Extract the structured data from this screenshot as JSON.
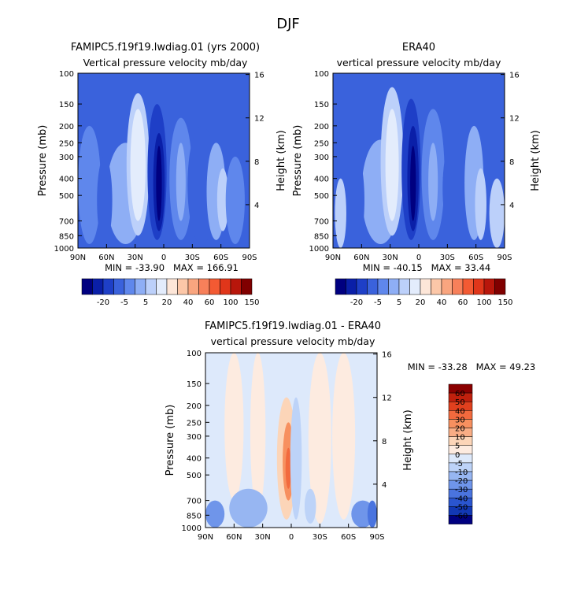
{
  "figure_title": "DJF",
  "chart_data": [
    {
      "type": "heatmap",
      "title": "FAMIPC5.f19f19.lwdiag.01 (yrs 2000)",
      "subtitle": "Vertical pressure velocity mb/day",
      "xlabel": "",
      "ylabel": "Pressure (mb)",
      "right_ylabel": "Height (km)",
      "x_ticks": [
        "90N",
        "60N",
        "30N",
        "0",
        "30S",
        "60S",
        "90S"
      ],
      "x_range": [
        90,
        -90
      ],
      "y_ticks": [
        "100",
        "150",
        "200",
        "250",
        "300",
        "400",
        "500",
        "700",
        "850",
        "1000"
      ],
      "y_range_mb": [
        1000,
        100
      ],
      "y_scale": "log",
      "right_ticks": [
        "4",
        "8",
        "12",
        "16"
      ],
      "stats": "MIN = -33.90   MAX = 166.91",
      "colorbar": {
        "labels": [
          "-20",
          "-5",
          "5",
          "20",
          "40",
          "60",
          "100",
          "150"
        ],
        "colors": [
          "#000080",
          "#0a1fa8",
          "#1e3fc7",
          "#3a62dc",
          "#5f87ec",
          "#8eaef5",
          "#bcd0fa",
          "#e3ecfc",
          "#fde6d8",
          "#fcc7a8",
          "#f9a57f",
          "#f7805a",
          "#f35a33",
          "#e0361a",
          "#b8160b",
          "#800000"
        ]
      }
    },
    {
      "type": "heatmap",
      "title": "ERA40",
      "subtitle": "vertical pressure velocity mb/day",
      "xlabel": "",
      "ylabel": "Pressure (mb)",
      "right_ylabel": "Height (km)",
      "x_ticks": [
        "90N",
        "60N",
        "30N",
        "0",
        "30S",
        "60S",
        "90S"
      ],
      "x_range": [
        90,
        -90
      ],
      "y_ticks": [
        "100",
        "150",
        "200",
        "250",
        "300",
        "400",
        "500",
        "700",
        "850",
        "1000"
      ],
      "y_range_mb": [
        1000,
        100
      ],
      "y_scale": "log",
      "right_ticks": [
        "4",
        "8",
        "12",
        "16"
      ],
      "stats": "MIN = -40.15   MAX = 33.44",
      "colorbar": {
        "labels": [
          "-20",
          "-5",
          "5",
          "20",
          "40",
          "60",
          "100",
          "150"
        ],
        "colors": [
          "#000080",
          "#0a1fa8",
          "#1e3fc7",
          "#3a62dc",
          "#5f87ec",
          "#8eaef5",
          "#bcd0fa",
          "#e3ecfc",
          "#fde6d8",
          "#fcc7a8",
          "#f9a57f",
          "#f7805a",
          "#f35a33",
          "#e0361a",
          "#b8160b",
          "#800000"
        ]
      }
    },
    {
      "type": "heatmap",
      "title": "FAMIPC5.f19f19.lwdiag.01 - ERA40",
      "subtitle": "vertical pressure velocity mb/day",
      "xlabel": "",
      "ylabel": "Pressure (mb)",
      "right_ylabel": "Height (km)",
      "x_ticks": [
        "90N",
        "60N",
        "30N",
        "0",
        "30S",
        "60S",
        "90S"
      ],
      "x_range": [
        90,
        -90
      ],
      "y_ticks": [
        "100",
        "150",
        "200",
        "250",
        "300",
        "400",
        "500",
        "700",
        "850",
        "1000"
      ],
      "y_range_mb": [
        1000,
        100
      ],
      "y_scale": "log",
      "right_ticks": [
        "4",
        "8",
        "12",
        "16"
      ],
      "stats": "MIN = -33.28   MAX = 49.23",
      "colorbar": {
        "labels": [
          "60",
          "50",
          "40",
          "30",
          "20",
          "10",
          "5",
          "0",
          "-5",
          "-10",
          "-20",
          "-30",
          "-40",
          "-50",
          "-60"
        ],
        "colors": [
          "#8b0000",
          "#c0200d",
          "#e0401e",
          "#f26a3e",
          "#f7905f",
          "#f9ad85",
          "#fcd5b8",
          "#fdebe0",
          "#dde9fb",
          "#bdd3f8",
          "#97b6f2",
          "#6f95ea",
          "#4a74df",
          "#2a55cf",
          "#1238b4",
          "#000080"
        ]
      }
    }
  ]
}
